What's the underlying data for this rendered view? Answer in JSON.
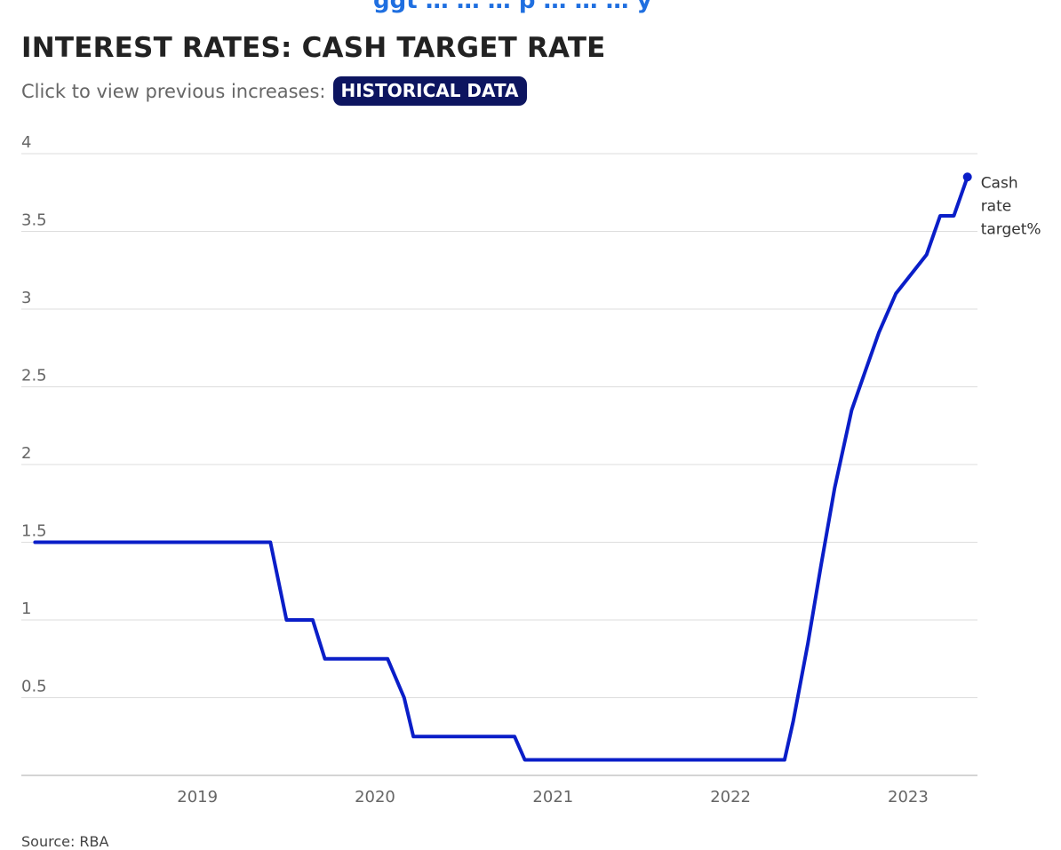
{
  "header": {
    "top_clip_text": "ggt … … … p … … … y",
    "title": "INTEREST RATES: CASH TARGET RATE",
    "subtitle": "Click to view previous increases:",
    "historical_button_label": "HISTORICAL DATA"
  },
  "source": "Source: RBA",
  "colors": {
    "line": "#0a1ec8",
    "title": "#222222",
    "button_bg": "#0d1560",
    "gridline": "#dddddd",
    "axis": "#aaaaaa"
  },
  "chart_data": {
    "type": "line",
    "title": "INTEREST RATES: CASH TARGET RATE",
    "xlabel": "",
    "ylabel": "",
    "ylim": [
      0,
      4
    ],
    "xlim": [
      "2018-01-24",
      "2023-05-20"
    ],
    "y_ticks": [
      0.5,
      1,
      1.5,
      2,
      2.5,
      3,
      3.5,
      4
    ],
    "y_tick_labels": [
      "0.5",
      "1",
      "1.5",
      "2",
      "2.5",
      "3",
      "3.5",
      "4"
    ],
    "x_ticks": [
      "2019-01-01",
      "2020-01-01",
      "2021-01-01",
      "2022-01-01",
      "2023-01-01"
    ],
    "x_tick_labels": [
      "2019",
      "2020",
      "2021",
      "2022",
      "2023"
    ],
    "grid": true,
    "legend": "inline end label",
    "series": [
      {
        "name": "Cash rate target%",
        "name_lines": [
          "Cash",
          "rate",
          "target%"
        ],
        "color": "#0a1ec8",
        "points": [
          {
            "x": "2018-02-01",
            "y": 1.5
          },
          {
            "x": "2019-05-31",
            "y": 1.5
          },
          {
            "x": "2019-07-03",
            "y": 1.0
          },
          {
            "x": "2019-08-26",
            "y": 1.0
          },
          {
            "x": "2019-09-20",
            "y": 0.75
          },
          {
            "x": "2020-01-27",
            "y": 0.75
          },
          {
            "x": "2020-03-01",
            "y": 0.5
          },
          {
            "x": "2020-03-20",
            "y": 0.25
          },
          {
            "x": "2020-10-14",
            "y": 0.25
          },
          {
            "x": "2020-11-04",
            "y": 0.1
          },
          {
            "x": "2022-04-22",
            "y": 0.1
          },
          {
            "x": "2022-05-10",
            "y": 0.35
          },
          {
            "x": "2022-06-09",
            "y": 0.85
          },
          {
            "x": "2022-07-06",
            "y": 1.35
          },
          {
            "x": "2022-08-03",
            "y": 1.85
          },
          {
            "x": "2022-09-07",
            "y": 2.35
          },
          {
            "x": "2022-10-05",
            "y": 2.6
          },
          {
            "x": "2022-11-02",
            "y": 2.85
          },
          {
            "x": "2022-12-07",
            "y": 3.1
          },
          {
            "x": "2023-02-08",
            "y": 3.35
          },
          {
            "x": "2023-03-08",
            "y": 3.6
          },
          {
            "x": "2023-04-05",
            "y": 3.6
          },
          {
            "x": "2023-05-03",
            "y": 3.85
          }
        ]
      }
    ]
  }
}
